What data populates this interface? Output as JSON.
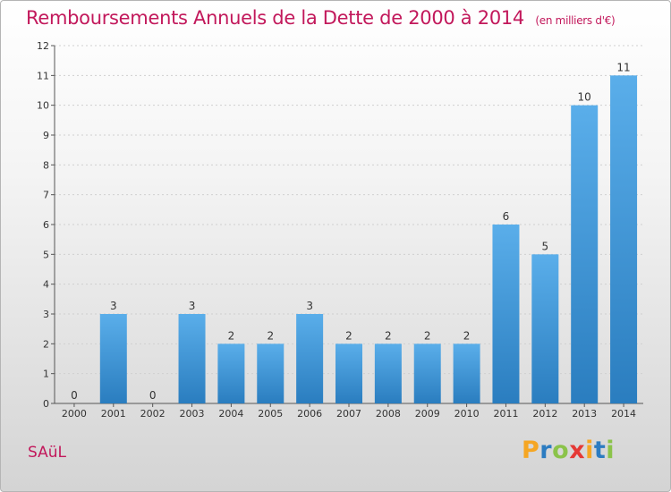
{
  "title": {
    "main": "Remboursements Annuels de la Dette de 2000 à 2014",
    "unit": "(en milliers d'€)"
  },
  "commune": "SAüL",
  "logo": {
    "letters": [
      "P",
      "r",
      "o",
      "x",
      "i",
      "t",
      "i"
    ],
    "colors": [
      "#f5a623",
      "#2c7cc1",
      "#8bc34a",
      "#e53935",
      "#f5a623",
      "#2c7cc1",
      "#8bc34a"
    ]
  },
  "colors": {
    "bar_light": "#5aaeea",
    "bar_dark": "#2a7dbf",
    "axis": "#555555",
    "grid": "#cfcfcf",
    "title": "#c2185b"
  },
  "chart_data": {
    "type": "bar",
    "title": "Remboursements Annuels de la Dette de 2000 à 2014",
    "xlabel": "",
    "ylabel": "",
    "ylim": [
      0,
      12
    ],
    "yticks": [
      0,
      1,
      2,
      3,
      4,
      5,
      6,
      7,
      8,
      9,
      10,
      11,
      12
    ],
    "grid": true,
    "categories": [
      "2000",
      "2001",
      "2002",
      "2003",
      "2004",
      "2005",
      "2006",
      "2007",
      "2008",
      "2009",
      "2010",
      "2011",
      "2012",
      "2013",
      "2014"
    ],
    "values": [
      0,
      3,
      0,
      3,
      2,
      2,
      3,
      2,
      2,
      2,
      2,
      6,
      5,
      10,
      11
    ]
  }
}
